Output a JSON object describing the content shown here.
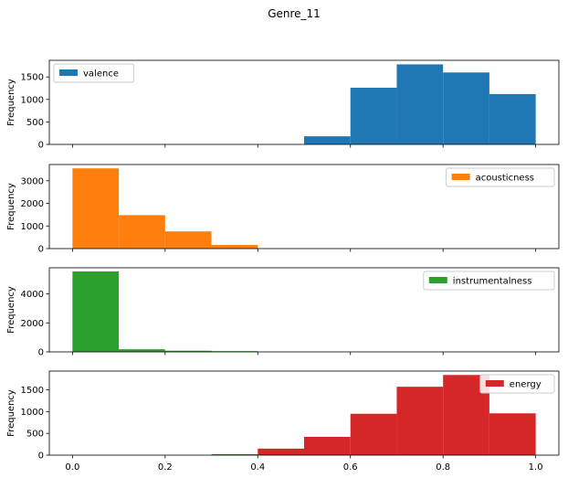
{
  "figure": {
    "title": "Genre_11"
  },
  "chart_data": [
    {
      "type": "bar",
      "name": "valence",
      "color": "#1f77b4",
      "ylabel": "Frequency",
      "xlim": [
        -0.05,
        1.05
      ],
      "ylim": [
        0,
        1870
      ],
      "yticks": [
        0,
        500,
        1000,
        1500
      ],
      "xticks": [
        0.0,
        0.2,
        0.4,
        0.6,
        0.8,
        1.0
      ],
      "show_xtick_labels": false,
      "legend_position": "upper-left",
      "bins": [
        [
          0.5,
          0.6
        ],
        [
          0.6,
          0.7
        ],
        [
          0.7,
          0.8
        ],
        [
          0.8,
          0.9
        ],
        [
          0.9,
          1.0
        ]
      ],
      "values": [
        180,
        1260,
        1780,
        1600,
        1120
      ]
    },
    {
      "type": "bar",
      "name": "acousticness",
      "color": "#ff7f0e",
      "ylabel": "Frequency",
      "xlim": [
        -0.05,
        1.05
      ],
      "ylim": [
        0,
        3720
      ],
      "yticks": [
        0,
        1000,
        2000,
        3000
      ],
      "xticks": [
        0.0,
        0.2,
        0.4,
        0.6,
        0.8,
        1.0
      ],
      "show_xtick_labels": false,
      "legend_position": "upper-right",
      "bins": [
        [
          0.0,
          0.1
        ],
        [
          0.1,
          0.2
        ],
        [
          0.2,
          0.3
        ],
        [
          0.3,
          0.4
        ]
      ],
      "values": [
        3550,
        1480,
        760,
        160
      ]
    },
    {
      "type": "bar",
      "name": "instrumentalness",
      "color": "#2ca02c",
      "ylabel": "Frequency",
      "xlim": [
        -0.05,
        1.05
      ],
      "ylim": [
        0,
        5800
      ],
      "yticks": [
        0,
        2000,
        4000
      ],
      "xticks": [
        0.0,
        0.2,
        0.4,
        0.6,
        0.8,
        1.0
      ],
      "show_xtick_labels": false,
      "legend_position": "upper-right",
      "bins": [
        [
          0.0,
          0.1
        ],
        [
          0.1,
          0.2
        ],
        [
          0.2,
          0.3
        ],
        [
          0.3,
          0.4
        ]
      ],
      "values": [
        5550,
        180,
        80,
        50
      ]
    },
    {
      "type": "bar",
      "name": "energy",
      "color": "#d62728",
      "ylabel": "Frequency",
      "xlim": [
        -0.05,
        1.05
      ],
      "ylim": [
        0,
        1930
      ],
      "yticks": [
        0,
        500,
        1000,
        1500
      ],
      "xticks": [
        0.0,
        0.2,
        0.4,
        0.6,
        0.8,
        1.0
      ],
      "xtick_labels": [
        "0.0",
        "0.2",
        "0.4",
        "0.6",
        "0.8",
        "1.0"
      ],
      "show_xtick_labels": true,
      "legend_position": "upper-right",
      "bins": [
        [
          0.3,
          0.4
        ],
        [
          0.4,
          0.5
        ],
        [
          0.5,
          0.6
        ],
        [
          0.6,
          0.7
        ],
        [
          0.7,
          0.8
        ],
        [
          0.8,
          0.9
        ],
        [
          0.9,
          1.0
        ]
      ],
      "values": [
        20,
        150,
        420,
        950,
        1570,
        1840,
        960
      ]
    }
  ]
}
